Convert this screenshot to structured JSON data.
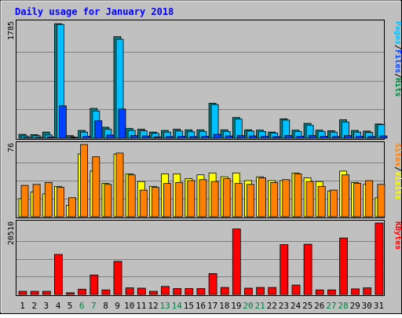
{
  "chart_data": {
    "type": "bar",
    "title": "Daily usage for January 2018",
    "categories": [
      "1",
      "2",
      "3",
      "4",
      "5",
      "6",
      "7",
      "8",
      "9",
      "10",
      "11",
      "12",
      "13",
      "14",
      "15",
      "16",
      "17",
      "18",
      "19",
      "20",
      "21",
      "22",
      "23",
      "24",
      "25",
      "26",
      "27",
      "28",
      "29",
      "30",
      "31"
    ],
    "weekend_days": [
      "6",
      "7",
      "13",
      "14",
      "20",
      "21",
      "27",
      "28"
    ],
    "panels": [
      {
        "id": "hits-files-pages",
        "ymax": 1785,
        "ymax_label": "1785",
        "legend": [
          "Pages",
          "/",
          "Files",
          "/",
          "Hits"
        ],
        "legend_colors": [
          "#00c0ff",
          "#000000",
          "#0040ff",
          "#000000",
          "#008040"
        ],
        "series": [
          {
            "name": "Hits",
            "color": "#008080",
            "values": [
              60,
              55,
              95,
              1770,
              40,
              120,
              460,
              170,
              1570,
              150,
              140,
              95,
              120,
              140,
              130,
              130,
              540,
              130,
              320,
              130,
              125,
              95,
              300,
              125,
              230,
              125,
              115,
              285,
              120,
              110,
              220
            ]
          },
          {
            "name": "Files",
            "color": "#00c0ff",
            "values": [
              35,
              40,
              50,
              1760,
              20,
              95,
              420,
              140,
              1530,
              120,
              115,
              75,
              95,
              110,
              100,
              105,
              520,
              105,
              295,
              110,
              105,
              80,
              280,
              105,
              200,
              105,
              95,
              250,
              95,
              90,
              210
            ]
          },
          {
            "name": "Pages",
            "color": "#0040ff",
            "values": [
              10,
              15,
              20,
              500,
              5,
              30,
              270,
              50,
              450,
              40,
              35,
              20,
              25,
              30,
              25,
              30,
              60,
              35,
              40,
              35,
              30,
              25,
              40,
              30,
              40,
              30,
              25,
              40,
              30,
              25,
              35
            ]
          }
        ]
      },
      {
        "id": "visits-sites",
        "ymax": 76,
        "ymax_label": "76",
        "legend": [
          "Sites",
          "/",
          "Visits"
        ],
        "legend_colors": [
          "#ff8000",
          "#000000",
          "#ffff00"
        ],
        "series": [
          {
            "name": "Visits",
            "color": "#ffff00",
            "values": [
              19,
              26,
              24,
              32,
              12,
              66,
              48,
              35,
              66,
              45,
              37,
              32,
              45,
              45,
              40,
              44,
              46,
              42,
              46,
              38,
              42,
              38,
              38,
              46,
              41,
              37,
              27,
              48,
              36,
              34,
              20
            ]
          },
          {
            "name": "Sites",
            "color": "#ff8000",
            "values": [
              33,
              34,
              36,
              31,
              20,
              76,
              63,
              34,
              67,
              44,
              28,
              31,
              35,
              36,
              38,
              39,
              37,
              40,
              35,
              34,
              41,
              36,
              39,
              45,
              37,
              32,
              28,
              44,
              35,
              38,
              34
            ]
          }
        ]
      },
      {
        "id": "kbytes",
        "ymax": 20510,
        "ymax_label": "20510",
        "legend": [
          "KBytes"
        ],
        "legend_colors": [
          "#ff0000"
        ],
        "series": [
          {
            "name": "KBytes",
            "color": "#ff0000",
            "values": [
              900,
              900,
              900,
              11500,
              500,
              1500,
              5600,
              1300,
              9500,
              1900,
              1800,
              900,
              2300,
              1700,
              1700,
              1700,
              6000,
              2000,
              18800,
              1800,
              2000,
              2000,
              14300,
              2700,
              14400,
              1300,
              1300,
              16200,
              1600,
              1900,
              20510
            ]
          }
        ]
      }
    ]
  }
}
